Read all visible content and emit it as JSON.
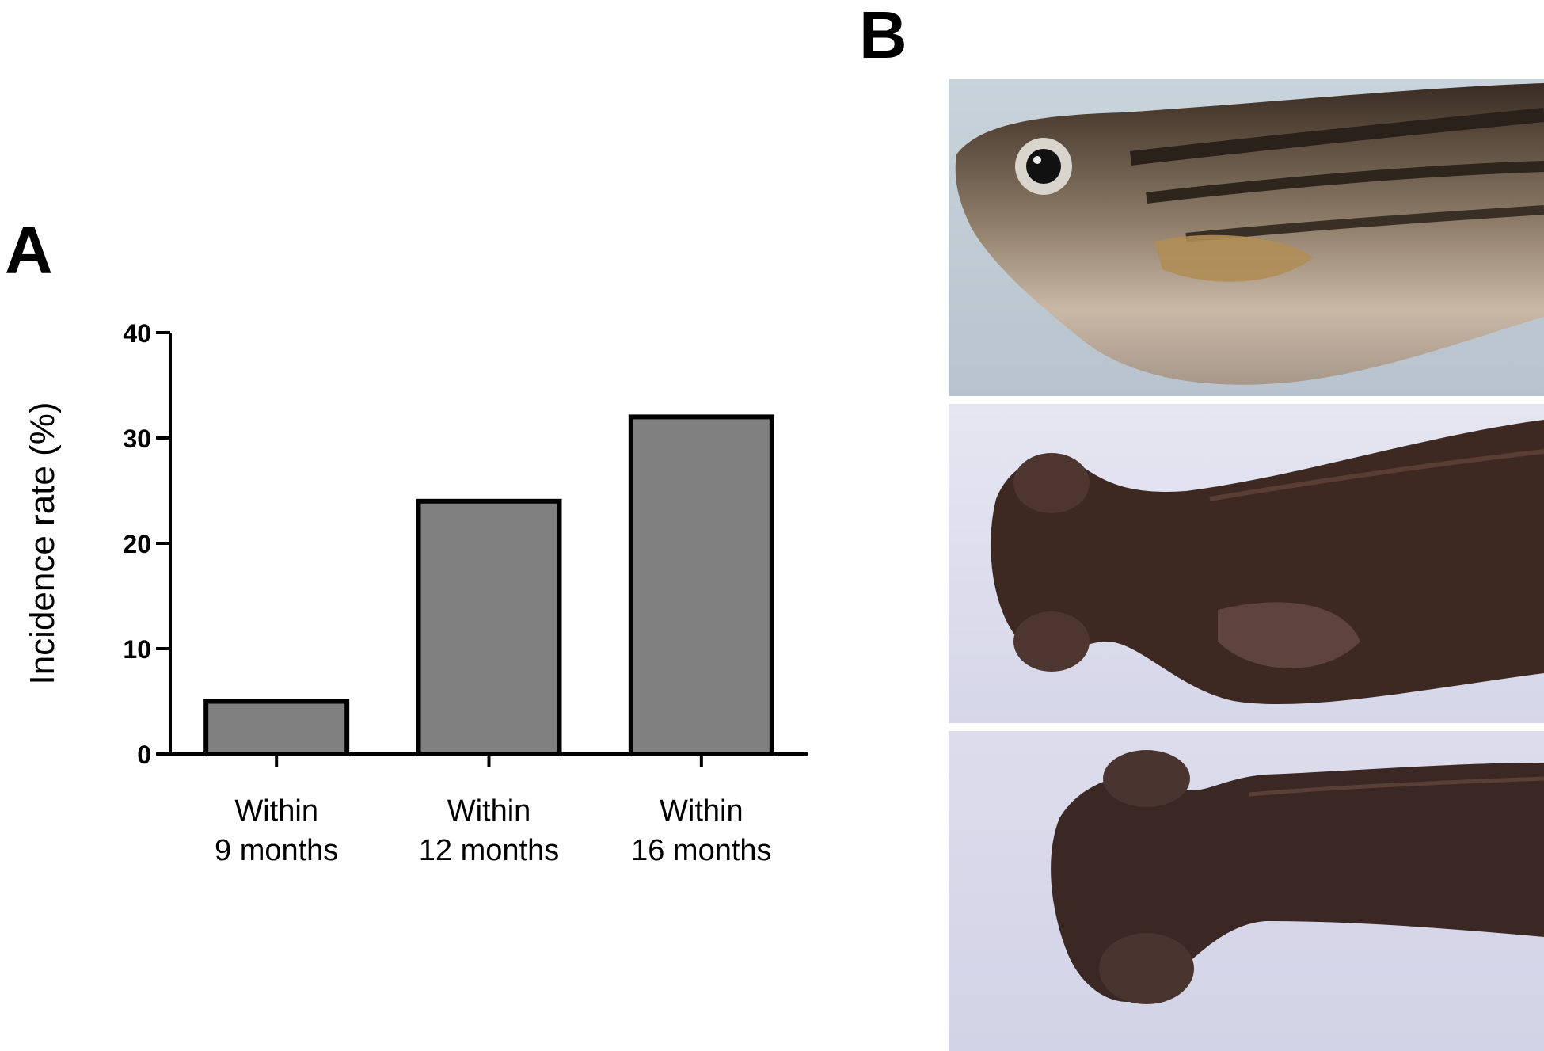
{
  "panels": {
    "a_label": "A",
    "b_label": "B"
  },
  "chart_data": {
    "type": "bar",
    "categories": [
      [
        "Within",
        "9 months"
      ],
      [
        "Within",
        "12 months"
      ],
      [
        "Within",
        "16 months"
      ]
    ],
    "values": [
      5,
      24,
      32
    ],
    "title": "",
    "xlabel": "",
    "ylabel": "Incidence rate (%)",
    "ylim": [
      0,
      40
    ],
    "yticks": [
      0,
      10,
      20,
      30,
      40
    ],
    "bar_color": "#808080",
    "grid": false,
    "legend": "none"
  },
  "photos": {
    "items": [
      {
        "name": "zebrafish-lateral-photo",
        "view": "lateral"
      },
      {
        "name": "zebrafish-dorsal-photo-1",
        "view": "dorsal"
      },
      {
        "name": "zebrafish-dorsal-photo-2",
        "view": "dorsal"
      }
    ]
  }
}
